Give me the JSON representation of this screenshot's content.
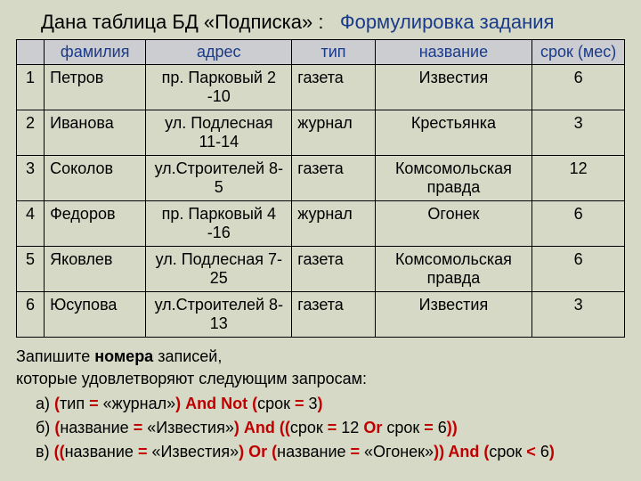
{
  "title": {
    "part1": "Дана таблица БД «Подписка» :",
    "part2": "Формулировка задания"
  },
  "headers": [
    "",
    "фамилия",
    "адрес",
    "тип",
    "название",
    "срок (мес)"
  ],
  "rows": [
    {
      "n": "1",
      "fam": "Петров",
      "adr": "пр. Парковый 2 -10",
      "tip": "газета",
      "naz": "Известия",
      "srok": "6"
    },
    {
      "n": "2",
      "fam": "Иванова",
      "adr": "ул. Подлесная 11-14",
      "tip": "журнал",
      "naz": "Крестьянка",
      "srok": "3"
    },
    {
      "n": "3",
      "fam": "Соколов",
      "adr": "ул.Строителей 8-5",
      "tip": "газета",
      "naz": "Комсомольская правда",
      "srok": "12"
    },
    {
      "n": "4",
      "fam": "Федоров",
      "adr": "пр. Парковый 4 -16",
      "tip": "журнал",
      "naz": "Огонек",
      "srok": "6"
    },
    {
      "n": "5",
      "fam": "Яковлев",
      "adr": "ул. Подлесная 7-25",
      "tip": "газета",
      "naz": "Комсомольская правда",
      "srok": "6"
    },
    {
      "n": "6",
      "fam": "Юсупова",
      "adr": "ул.Строителей 8-13",
      "tip": "газета",
      "naz": "Известия",
      "srok": "3"
    }
  ],
  "instr1": "Запишите ",
  "instr1b": "номера",
  "instr1c": " записей,",
  "instr2": "которые удовлетворяют следующим запросам:",
  "q": {
    "a_label": "а)   ",
    "a_p1": "(",
    "a_t1": "тип ",
    "a_eq1": "= ",
    "a_v1": "«журнал»",
    "a_p2": ") ",
    "a_and": "And ",
    "a_not": "Not ",
    "a_p3": "(",
    "a_t2": "срок ",
    "a_eq2": "= ",
    "a_v2": "3",
    "a_p4": ")",
    "b_label": "б)  ",
    "b_p1": "(",
    "b_t1": "название ",
    "b_eq1": "= ",
    "b_v1": "«Известия»",
    "b_p2": ") ",
    "b_and1": "And ",
    "b_pp1": "(",
    "b_p3": "(",
    "b_t2": "срок ",
    "b_eq2": "= ",
    "b_v2": "12 ",
    "b_or": "Or ",
    "b_t3": "срок ",
    "b_eq3": "= ",
    "b_v3": "6",
    "b_p4": ")",
    "b_pp2": ")",
    "c_label": "в) ",
    "c_pp1": "(",
    "c_p1": "(",
    "c_t1": "название ",
    "c_eq1": "= ",
    "c_v1": "«Известия»",
    "c_p2": ") ",
    "c_or": "Or ",
    "c_p3": "(",
    "c_t2": "название ",
    "c_eq2": "= ",
    "c_v2": "«Огонек»",
    "c_p4": ")",
    "c_pp2": ") ",
    "c_and": "And ",
    "c_p5": "(",
    "c_t3": "срок ",
    "c_lt": "< ",
    "c_v3": "6",
    "c_p6": ")"
  }
}
